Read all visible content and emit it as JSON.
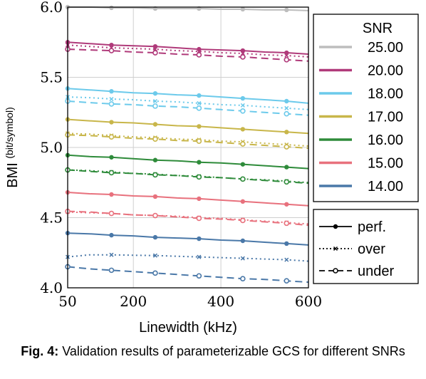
{
  "chart_data": {
    "type": "line",
    "xlabel": "Linewidth (kHz)",
    "ylabel_main": "BMI",
    "ylabel_unit": "(bit/symbol)",
    "xlim": [
      50,
      600
    ],
    "ylim": [
      4.0,
      6.0
    ],
    "xticks": [
      50,
      200,
      400,
      600
    ],
    "yticks": [
      4.0,
      4.5,
      5.0,
      5.5,
      6.0
    ],
    "x": [
      50,
      100,
      150,
      200,
      250,
      300,
      350,
      400,
      450,
      500,
      550,
      600
    ],
    "grid": true,
    "legend_snr": {
      "title": "SNR",
      "placement": "right",
      "entries": [
        {
          "label": "25.00",
          "color": "#bdbdbd"
        },
        {
          "label": "20.00",
          "color": "#b03a7a"
        },
        {
          "label": "18.00",
          "color": "#6ccaeb"
        },
        {
          "label": "17.00",
          "color": "#c8b64a"
        },
        {
          "label": "16.00",
          "color": "#2e8b3a"
        },
        {
          "label": "15.00",
          "color": "#e8717d"
        },
        {
          "label": "14.00",
          "color": "#4a78a8"
        }
      ]
    },
    "legend_style": {
      "entries": [
        {
          "label": "perf.",
          "style": "solid"
        },
        {
          "label": "over",
          "style": "dotted"
        },
        {
          "label": "under",
          "style": "dashed"
        }
      ]
    },
    "series": [
      {
        "snr": "25.00",
        "style": "perf.",
        "color": "#bdbdbd",
        "values": [
          6.0,
          6.0,
          5.995,
          5.995,
          5.99,
          5.99,
          5.99,
          5.985,
          5.985,
          5.98,
          5.98,
          5.975
        ]
      },
      {
        "snr": "20.00",
        "style": "perf.",
        "color": "#b03a7a",
        "values": [
          5.75,
          5.74,
          5.73,
          5.725,
          5.72,
          5.71,
          5.7,
          5.695,
          5.69,
          5.68,
          5.675,
          5.665
        ]
      },
      {
        "snr": "20.00",
        "style": "over",
        "color": "#b03a7a",
        "values": [
          5.73,
          5.72,
          5.71,
          5.705,
          5.7,
          5.69,
          5.685,
          5.675,
          5.67,
          5.66,
          5.655,
          5.645
        ]
      },
      {
        "snr": "20.00",
        "style": "under",
        "color": "#b03a7a",
        "values": [
          5.7,
          5.695,
          5.69,
          5.68,
          5.675,
          5.665,
          5.66,
          5.65,
          5.645,
          5.635,
          5.625,
          5.615
        ]
      },
      {
        "snr": "18.00",
        "style": "perf.",
        "color": "#6ccaeb",
        "values": [
          5.42,
          5.41,
          5.4,
          5.39,
          5.385,
          5.375,
          5.37,
          5.36,
          5.35,
          5.34,
          5.33,
          5.315
        ]
      },
      {
        "snr": "18.00",
        "style": "over",
        "color": "#6ccaeb",
        "values": [
          5.36,
          5.355,
          5.345,
          5.34,
          5.33,
          5.325,
          5.315,
          5.305,
          5.3,
          5.29,
          5.28,
          5.27
        ]
      },
      {
        "snr": "18.00",
        "style": "under",
        "color": "#6ccaeb",
        "values": [
          5.33,
          5.32,
          5.31,
          5.305,
          5.295,
          5.29,
          5.28,
          5.27,
          5.26,
          5.25,
          5.24,
          5.23
        ]
      },
      {
        "snr": "17.00",
        "style": "perf.",
        "color": "#c8b64a",
        "values": [
          5.2,
          5.19,
          5.18,
          5.175,
          5.165,
          5.155,
          5.15,
          5.14,
          5.13,
          5.12,
          5.11,
          5.1
        ]
      },
      {
        "snr": "17.00",
        "style": "over",
        "color": "#c8b64a",
        "values": [
          5.1,
          5.095,
          5.085,
          5.075,
          5.07,
          5.06,
          5.055,
          5.045,
          5.04,
          5.03,
          5.02,
          5.01
        ]
      },
      {
        "snr": "17.00",
        "style": "under",
        "color": "#c8b64a",
        "values": [
          5.09,
          5.085,
          5.075,
          5.065,
          5.06,
          5.05,
          5.045,
          5.035,
          5.025,
          5.015,
          5.005,
          4.995
        ]
      },
      {
        "snr": "16.00",
        "style": "perf.",
        "color": "#2e8b3a",
        "values": [
          4.945,
          4.935,
          4.93,
          4.92,
          4.91,
          4.905,
          4.895,
          4.89,
          4.88,
          4.87,
          4.86,
          4.85
        ]
      },
      {
        "snr": "16.00",
        "style": "over",
        "color": "#2e8b3a",
        "values": [
          4.84,
          4.835,
          4.825,
          4.815,
          4.81,
          4.8,
          4.795,
          4.785,
          4.775,
          4.77,
          4.76,
          4.75
        ]
      },
      {
        "snr": "16.00",
        "style": "under",
        "color": "#2e8b3a",
        "values": [
          4.84,
          4.83,
          4.82,
          4.815,
          4.805,
          4.8,
          4.79,
          4.785,
          4.775,
          4.765,
          4.755,
          4.745
        ]
      },
      {
        "snr": "15.00",
        "style": "perf.",
        "color": "#e8717d",
        "values": [
          4.68,
          4.67,
          4.665,
          4.655,
          4.65,
          4.64,
          4.635,
          4.625,
          4.615,
          4.605,
          4.595,
          4.585
        ]
      },
      {
        "snr": "15.00",
        "style": "over",
        "color": "#e8717d",
        "values": [
          4.54,
          4.535,
          4.53,
          4.52,
          4.515,
          4.51,
          4.5,
          4.495,
          4.485,
          4.475,
          4.465,
          4.455
        ]
      },
      {
        "snr": "15.00",
        "style": "under",
        "color": "#e8717d",
        "values": [
          4.545,
          4.54,
          4.53,
          4.52,
          4.515,
          4.505,
          4.495,
          4.49,
          4.48,
          4.47,
          4.46,
          4.445
        ]
      },
      {
        "snr": "14.00",
        "style": "perf.",
        "color": "#4a78a8",
        "values": [
          4.39,
          4.385,
          4.375,
          4.37,
          4.36,
          4.355,
          4.35,
          4.34,
          4.335,
          4.325,
          4.315,
          4.305
        ]
      },
      {
        "snr": "14.00",
        "style": "over",
        "color": "#4a78a8",
        "values": [
          4.22,
          4.235,
          4.235,
          4.232,
          4.23,
          4.225,
          4.22,
          4.215,
          4.21,
          4.205,
          4.2,
          4.19
        ]
      },
      {
        "snr": "14.00",
        "style": "under",
        "color": "#4a78a8",
        "values": [
          4.15,
          4.135,
          4.125,
          4.115,
          4.105,
          4.095,
          4.085,
          4.075,
          4.065,
          4.06,
          4.05,
          4.04
        ]
      }
    ]
  },
  "caption": {
    "label": "Fig. 4:",
    "text": " Validation results of parameterizable GCS for different SNRs"
  }
}
